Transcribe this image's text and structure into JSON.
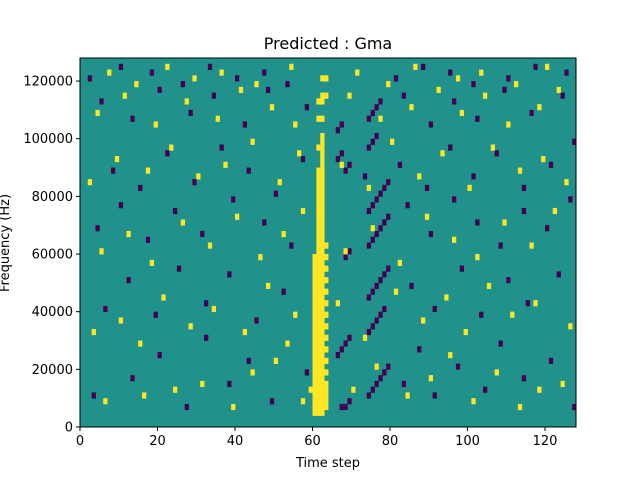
{
  "chart_data": {
    "type": "heatmap",
    "title": "Predicted : Gma",
    "xlabel": "Time step",
    "ylabel": "Frequency (Hz)",
    "xlim": [
      0,
      128
    ],
    "ylim": [
      0,
      128000
    ],
    "x_ticks": [
      0,
      20,
      40,
      60,
      80,
      100,
      120
    ],
    "x_tick_labels": [
      "0",
      "20",
      "40",
      "60",
      "80",
      "100",
      "120"
    ],
    "y_ticks": [
      0,
      20000,
      40000,
      60000,
      80000,
      100000,
      120000
    ],
    "y_tick_labels": [
      "0",
      "20000",
      "40000",
      "60000",
      "80000",
      "100000",
      "120000"
    ],
    "n_time_steps": 128,
    "n_freq_bins": 64,
    "freq_bin_hz": 2000,
    "background_value": 0,
    "colormap": "viridis",
    "value_colors": {
      "-1": "#440154",
      "0": "#21918c",
      "1": "#fde725"
    },
    "cells_high_value": [
      [
        60,
        2
      ],
      [
        61,
        2
      ],
      [
        62,
        2
      ],
      [
        60,
        3
      ],
      [
        61,
        3
      ],
      [
        62,
        3
      ],
      [
        63,
        3
      ],
      [
        60,
        4
      ],
      [
        61,
        4
      ],
      [
        62,
        4
      ],
      [
        63,
        4
      ],
      [
        60,
        5
      ],
      [
        61,
        5
      ],
      [
        62,
        5
      ],
      [
        63,
        5
      ],
      [
        59,
        6
      ],
      [
        60,
        6
      ],
      [
        61,
        6
      ],
      [
        62,
        6
      ],
      [
        63,
        6
      ],
      [
        60,
        7
      ],
      [
        61,
        7
      ],
      [
        62,
        7
      ],
      [
        63,
        7
      ],
      [
        60,
        8
      ],
      [
        61,
        8
      ],
      [
        62,
        8
      ],
      [
        60,
        9
      ],
      [
        61,
        9
      ],
      [
        62,
        9
      ],
      [
        63,
        9
      ],
      [
        60,
        10
      ],
      [
        61,
        10
      ],
      [
        62,
        10
      ],
      [
        60,
        11
      ],
      [
        61,
        11
      ],
      [
        62,
        11
      ],
      [
        63,
        11
      ],
      [
        60,
        12
      ],
      [
        61,
        12
      ],
      [
        62,
        12
      ],
      [
        60,
        13
      ],
      [
        61,
        13
      ],
      [
        62,
        13
      ],
      [
        63,
        13
      ],
      [
        60,
        14
      ],
      [
        61,
        14
      ],
      [
        62,
        14
      ],
      [
        60,
        15
      ],
      [
        61,
        15
      ],
      [
        62,
        15
      ],
      [
        63,
        15
      ],
      [
        60,
        16
      ],
      [
        61,
        16
      ],
      [
        62,
        16
      ],
      [
        60,
        17
      ],
      [
        61,
        17
      ],
      [
        62,
        17
      ],
      [
        63,
        17
      ],
      [
        60,
        18
      ],
      [
        61,
        18
      ],
      [
        62,
        18
      ],
      [
        60,
        19
      ],
      [
        61,
        19
      ],
      [
        62,
        19
      ],
      [
        63,
        19
      ],
      [
        60,
        20
      ],
      [
        61,
        20
      ],
      [
        62,
        20
      ],
      [
        60,
        21
      ],
      [
        61,
        21
      ],
      [
        62,
        21
      ],
      [
        63,
        21
      ],
      [
        60,
        22
      ],
      [
        61,
        22
      ],
      [
        62,
        22
      ],
      [
        60,
        23
      ],
      [
        61,
        23
      ],
      [
        62,
        23
      ],
      [
        63,
        23
      ],
      [
        60,
        24
      ],
      [
        61,
        24
      ],
      [
        62,
        24
      ],
      [
        60,
        25
      ],
      [
        61,
        25
      ],
      [
        62,
        25
      ],
      [
        63,
        25
      ],
      [
        60,
        26
      ],
      [
        61,
        26
      ],
      [
        62,
        26
      ],
      [
        60,
        27
      ],
      [
        61,
        27
      ],
      [
        62,
        27
      ],
      [
        63,
        27
      ],
      [
        60,
        28
      ],
      [
        61,
        28
      ],
      [
        62,
        28
      ],
      [
        60,
        29
      ],
      [
        61,
        29
      ],
      [
        62,
        29
      ],
      [
        63,
        29
      ],
      [
        61,
        30
      ],
      [
        62,
        30
      ],
      [
        61,
        31
      ],
      [
        62,
        31
      ],
      [
        63,
        31
      ],
      [
        61,
        32
      ],
      [
        62,
        32
      ],
      [
        61,
        33
      ],
      [
        62,
        33
      ],
      [
        61,
        34
      ],
      [
        62,
        34
      ],
      [
        61,
        35
      ],
      [
        62,
        35
      ],
      [
        61,
        36
      ],
      [
        62,
        36
      ],
      [
        61,
        37
      ],
      [
        62,
        37
      ],
      [
        61,
        38
      ],
      [
        62,
        38
      ],
      [
        61,
        39
      ],
      [
        62,
        39
      ],
      [
        61,
        40
      ],
      [
        62,
        40
      ],
      [
        61,
        41
      ],
      [
        62,
        41
      ],
      [
        61,
        42
      ],
      [
        62,
        42
      ],
      [
        61,
        43
      ],
      [
        62,
        43
      ],
      [
        61,
        44
      ],
      [
        62,
        44
      ],
      [
        62,
        45
      ],
      [
        62,
        46
      ],
      [
        62,
        47
      ],
      [
        61,
        48
      ],
      [
        62,
        48
      ],
      [
        62,
        49
      ],
      [
        62,
        50
      ],
      [
        61,
        53
      ],
      [
        62,
        53
      ],
      [
        61,
        56
      ],
      [
        62,
        56
      ],
      [
        62,
        57
      ],
      [
        63,
        57
      ],
      [
        62,
        60
      ],
      [
        63,
        60
      ],
      [
        6,
        4
      ],
      [
        16,
        5
      ],
      [
        24,
        6
      ],
      [
        31,
        7
      ],
      [
        39,
        3
      ],
      [
        44,
        9
      ],
      [
        50,
        11
      ],
      [
        53,
        14
      ],
      [
        57,
        4
      ],
      [
        70,
        6
      ],
      [
        76,
        10
      ],
      [
        84,
        5
      ],
      [
        90,
        8
      ],
      [
        95,
        12
      ],
      [
        101,
        4
      ],
      [
        107,
        9
      ],
      [
        113,
        3
      ],
      [
        118,
        6
      ],
      [
        124,
        7
      ],
      [
        3,
        16
      ],
      [
        10,
        18
      ],
      [
        15,
        14
      ],
      [
        21,
        22
      ],
      [
        28,
        17
      ],
      [
        34,
        20
      ],
      [
        42,
        16
      ],
      [
        48,
        24
      ],
      [
        55,
        19
      ],
      [
        66,
        21
      ],
      [
        73,
        15
      ],
      [
        81,
        23
      ],
      [
        88,
        18
      ],
      [
        94,
        22
      ],
      [
        99,
        16
      ],
      [
        105,
        24
      ],
      [
        111,
        19
      ],
      [
        117,
        21
      ],
      [
        126,
        17
      ],
      [
        5,
        30
      ],
      [
        12,
        33
      ],
      [
        18,
        28
      ],
      [
        26,
        35
      ],
      [
        33,
        31
      ],
      [
        40,
        36
      ],
      [
        46,
        29
      ],
      [
        52,
        33
      ],
      [
        57,
        37
      ],
      [
        68,
        30
      ],
      [
        75,
        34
      ],
      [
        82,
        28
      ],
      [
        89,
        36
      ],
      [
        96,
        32
      ],
      [
        102,
        29
      ],
      [
        109,
        35
      ],
      [
        116,
        31
      ],
      [
        122,
        37
      ],
      [
        2,
        42
      ],
      [
        9,
        46
      ],
      [
        17,
        44
      ],
      [
        23,
        48
      ],
      [
        30,
        43
      ],
      [
        37,
        45
      ],
      [
        44,
        49
      ],
      [
        51,
        42
      ],
      [
        56,
        47
      ],
      [
        67,
        45
      ],
      [
        74,
        41
      ],
      [
        80,
        49
      ],
      [
        87,
        43
      ],
      [
        93,
        47
      ],
      [
        100,
        41
      ],
      [
        106,
        48
      ],
      [
        113,
        44
      ],
      [
        119,
        46
      ],
      [
        125,
        42
      ],
      [
        4,
        54
      ],
      [
        11,
        57
      ],
      [
        19,
        52
      ],
      [
        27,
        56
      ],
      [
        35,
        53
      ],
      [
        41,
        58
      ],
      [
        49,
        55
      ],
      [
        55,
        52
      ],
      [
        69,
        57
      ],
      [
        77,
        53
      ],
      [
        85,
        55
      ],
      [
        92,
        58
      ],
      [
        98,
        54
      ],
      [
        104,
        57
      ],
      [
        110,
        52
      ],
      [
        118,
        55
      ],
      [
        123,
        58
      ],
      [
        7,
        61
      ],
      [
        14,
        59
      ],
      [
        22,
        62
      ],
      [
        29,
        60
      ],
      [
        36,
        61
      ],
      [
        45,
        59
      ],
      [
        54,
        62
      ],
      [
        71,
        61
      ],
      [
        79,
        59
      ],
      [
        86,
        62
      ],
      [
        97,
        60
      ],
      [
        103,
        61
      ],
      [
        112,
        59
      ],
      [
        120,
        62
      ]
    ],
    "cells_low_value": [
      [
        67,
        3
      ],
      [
        68,
        3
      ],
      [
        69,
        4
      ],
      [
        74,
        5
      ],
      [
        75,
        6
      ],
      [
        76,
        7
      ],
      [
        77,
        8
      ],
      [
        78,
        9
      ],
      [
        79,
        10
      ],
      [
        66,
        12
      ],
      [
        67,
        13
      ],
      [
        68,
        14
      ],
      [
        69,
        15
      ],
      [
        74,
        16
      ],
      [
        75,
        17
      ],
      [
        76,
        18
      ],
      [
        77,
        19
      ],
      [
        78,
        20
      ],
      [
        74,
        22
      ],
      [
        75,
        23
      ],
      [
        76,
        24
      ],
      [
        77,
        25
      ],
      [
        78,
        26
      ],
      [
        79,
        27
      ],
      [
        68,
        29
      ],
      [
        69,
        30
      ],
      [
        74,
        31
      ],
      [
        75,
        32
      ],
      [
        76,
        33
      ],
      [
        77,
        34
      ],
      [
        78,
        35
      ],
      [
        79,
        36
      ],
      [
        74,
        37
      ],
      [
        75,
        38
      ],
      [
        76,
        39
      ],
      [
        77,
        40
      ],
      [
        78,
        41
      ],
      [
        79,
        42
      ],
      [
        73,
        43
      ],
      [
        68,
        44
      ],
      [
        69,
        45
      ],
      [
        66,
        46
      ],
      [
        67,
        47
      ],
      [
        74,
        48
      ],
      [
        75,
        49
      ],
      [
        76,
        50
      ],
      [
        66,
        51
      ],
      [
        67,
        52
      ],
      [
        74,
        53
      ],
      [
        75,
        54
      ],
      [
        76,
        55
      ],
      [
        77,
        56
      ],
      [
        3,
        5
      ],
      [
        13,
        8
      ],
      [
        20,
        12
      ],
      [
        27,
        3
      ],
      [
        32,
        15
      ],
      [
        38,
        7
      ],
      [
        43,
        11
      ],
      [
        49,
        4
      ],
      [
        58,
        9
      ],
      [
        83,
        7
      ],
      [
        87,
        13
      ],
      [
        91,
        5
      ],
      [
        97,
        10
      ],
      [
        104,
        6
      ],
      [
        108,
        14
      ],
      [
        114,
        8
      ],
      [
        121,
        11
      ],
      [
        127,
        3
      ],
      [
        6,
        20
      ],
      [
        12,
        25
      ],
      [
        19,
        19
      ],
      [
        25,
        27
      ],
      [
        32,
        21
      ],
      [
        38,
        26
      ],
      [
        45,
        18
      ],
      [
        52,
        23
      ],
      [
        85,
        24
      ],
      [
        91,
        20
      ],
      [
        98,
        27
      ],
      [
        103,
        19
      ],
      [
        110,
        25
      ],
      [
        115,
        21
      ],
      [
        123,
        26
      ],
      [
        4,
        34
      ],
      [
        10,
        38
      ],
      [
        17,
        32
      ],
      [
        24,
        37
      ],
      [
        31,
        33
      ],
      [
        39,
        39
      ],
      [
        47,
        35
      ],
      [
        54,
        31
      ],
      [
        84,
        38
      ],
      [
        90,
        33
      ],
      [
        96,
        39
      ],
      [
        102,
        35
      ],
      [
        108,
        31
      ],
      [
        114,
        37
      ],
      [
        120,
        34
      ],
      [
        126,
        39
      ],
      [
        8,
        44
      ],
      [
        15,
        41
      ],
      [
        22,
        47
      ],
      [
        29,
        42
      ],
      [
        36,
        48
      ],
      [
        43,
        44
      ],
      [
        50,
        40
      ],
      [
        57,
        46
      ],
      [
        82,
        45
      ],
      [
        89,
        41
      ],
      [
        95,
        48
      ],
      [
        101,
        43
      ],
      [
        107,
        47
      ],
      [
        114,
        41
      ],
      [
        121,
        45
      ],
      [
        127,
        49
      ],
      [
        5,
        56
      ],
      [
        13,
        53
      ],
      [
        20,
        58
      ],
      [
        28,
        54
      ],
      [
        34,
        57
      ],
      [
        42,
        52
      ],
      [
        48,
        58
      ],
      [
        58,
        55
      ],
      [
        83,
        57
      ],
      [
        90,
        52
      ],
      [
        96,
        56
      ],
      [
        102,
        53
      ],
      [
        109,
        58
      ],
      [
        116,
        54
      ],
      [
        124,
        57
      ],
      [
        2,
        60
      ],
      [
        10,
        62
      ],
      [
        18,
        61
      ],
      [
        26,
        59
      ],
      [
        33,
        62
      ],
      [
        40,
        60
      ],
      [
        47,
        61
      ],
      [
        53,
        59
      ],
      [
        81,
        60
      ],
      [
        88,
        62
      ],
      [
        95,
        61
      ],
      [
        101,
        59
      ],
      [
        110,
        60
      ],
      [
        117,
        62
      ],
      [
        125,
        61
      ]
    ]
  }
}
